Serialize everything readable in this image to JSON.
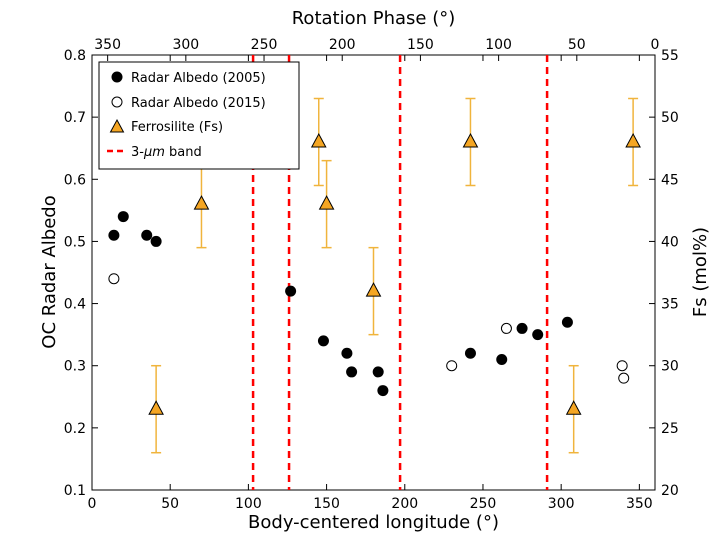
{
  "chart_data": {
    "type": "scatter",
    "title": "",
    "xlabel": "Body-centered longitude (°)",
    "ylabel": "OC Radar Albedo",
    "y2label": "Fs (mol%)",
    "top_xlabel": "Rotation Phase (°)",
    "xlim": [
      0,
      360
    ],
    "ylim": [
      0.1,
      0.8
    ],
    "y2lim": [
      20,
      55
    ],
    "top_xlim": [
      360,
      0
    ],
    "x_ticks": [
      0,
      50,
      100,
      150,
      200,
      250,
      300,
      350
    ],
    "y_ticks": [
      0.1,
      0.2,
      0.3,
      0.4,
      0.5,
      0.6,
      0.7,
      0.8
    ],
    "y2_ticks": [
      20,
      25,
      30,
      35,
      40,
      45,
      50,
      55
    ],
    "top_ticks": [
      350,
      300,
      250,
      200,
      150,
      100,
      50,
      0
    ],
    "legend_position": "top-left",
    "series": [
      {
        "name": "Radar Albedo (2005)",
        "marker": "filled-circle",
        "color": "#000000",
        "axis": "left",
        "points": [
          {
            "x": 14,
            "y": 0.51
          },
          {
            "x": 20,
            "y": 0.54
          },
          {
            "x": 35,
            "y": 0.51
          },
          {
            "x": 41,
            "y": 0.5
          },
          {
            "x": 127,
            "y": 0.42
          },
          {
            "x": 148,
            "y": 0.34
          },
          {
            "x": 163,
            "y": 0.32
          },
          {
            "x": 166,
            "y": 0.29
          },
          {
            "x": 183,
            "y": 0.29
          },
          {
            "x": 186,
            "y": 0.26
          },
          {
            "x": 242,
            "y": 0.32
          },
          {
            "x": 262,
            "y": 0.31
          },
          {
            "x": 275,
            "y": 0.36
          },
          {
            "x": 285,
            "y": 0.35
          },
          {
            "x": 304,
            "y": 0.37
          }
        ]
      },
      {
        "name": "Radar Albedo (2015)",
        "marker": "open-circle",
        "color": "#000000",
        "axis": "left",
        "points": [
          {
            "x": 14,
            "y": 0.44
          },
          {
            "x": 230,
            "y": 0.3
          },
          {
            "x": 265,
            "y": 0.36
          },
          {
            "x": 339,
            "y": 0.3
          },
          {
            "x": 340,
            "y": 0.28
          }
        ]
      },
      {
        "name": "Ferrosilite (Fs)",
        "marker": "triangle",
        "color": "#f5a623",
        "errorbar_color": "#f0b43c",
        "axis": "right",
        "points": [
          {
            "x": 41,
            "y": 26.5,
            "err": 3.5
          },
          {
            "x": 70,
            "y": 43,
            "err": 3.5
          },
          {
            "x": 145,
            "y": 48,
            "err": 3.5
          },
          {
            "x": 150,
            "y": 43,
            "err": 3.5
          },
          {
            "x": 180,
            "y": 36,
            "err": 3.5
          },
          {
            "x": 242,
            "y": 48,
            "err": 3.5
          },
          {
            "x": 308,
            "y": 26.5,
            "err": 3.5
          },
          {
            "x": 346,
            "y": 48,
            "err": 3.5
          }
        ]
      }
    ],
    "band_lines": {
      "name": "3-μm band",
      "legend_prefix": "3-",
      "legend_mu": "μm",
      "legend_suffix": " band",
      "color": "#ff0000",
      "x": [
        103,
        126,
        197,
        291
      ]
    }
  }
}
